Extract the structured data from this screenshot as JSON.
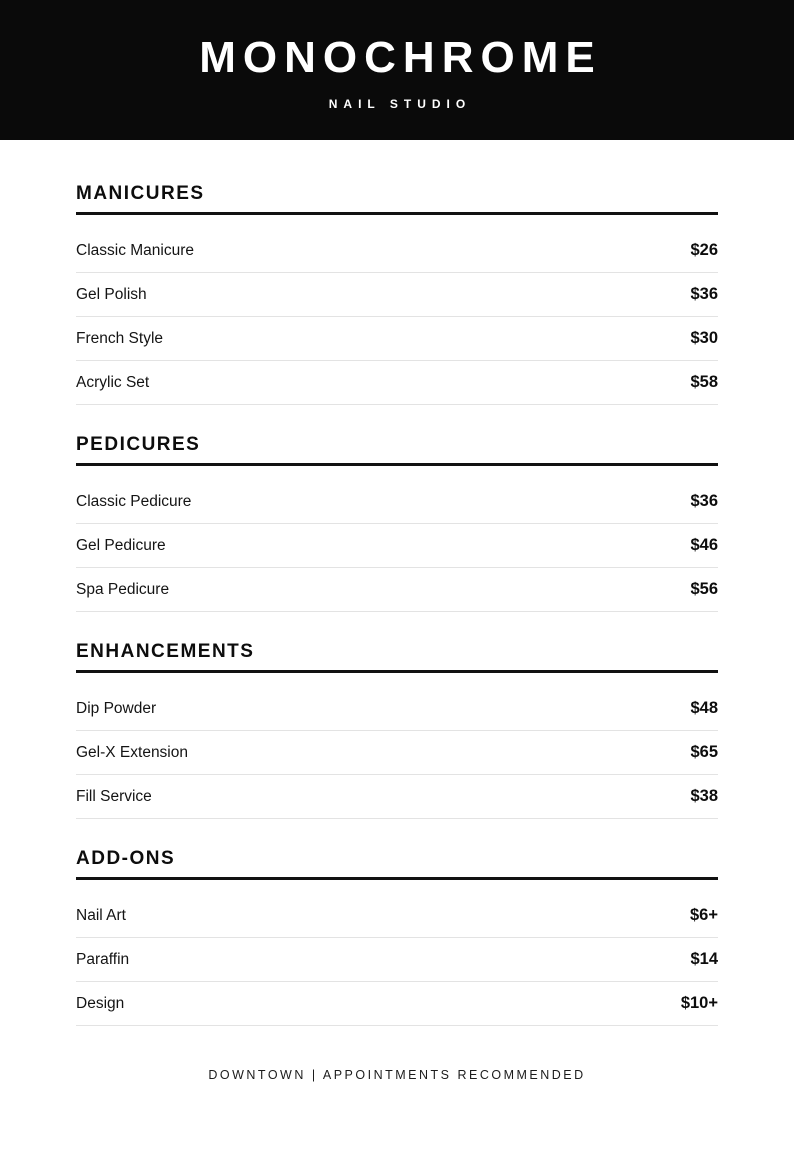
{
  "header": {
    "title": "MONOCHROME",
    "subtitle": "NAIL STUDIO"
  },
  "sections": [
    {
      "title": "MANICURES",
      "items": [
        {
          "name": "Classic Manicure",
          "price": "$26"
        },
        {
          "name": "Gel Polish",
          "price": "$36"
        },
        {
          "name": "French Style",
          "price": "$30"
        },
        {
          "name": "Acrylic Set",
          "price": "$58"
        }
      ]
    },
    {
      "title": "PEDICURES",
      "items": [
        {
          "name": "Classic Pedicure",
          "price": "$36"
        },
        {
          "name": "Gel Pedicure",
          "price": "$46"
        },
        {
          "name": "Spa Pedicure",
          "price": "$56"
        }
      ]
    },
    {
      "title": "ENHANCEMENTS",
      "items": [
        {
          "name": "Dip Powder",
          "price": "$48"
        },
        {
          "name": "Gel-X Extension",
          "price": "$65"
        },
        {
          "name": "Fill Service",
          "price": "$38"
        }
      ]
    },
    {
      "title": "ADD-ONS",
      "items": [
        {
          "name": "Nail Art",
          "price": "$6+"
        },
        {
          "name": "Paraffin",
          "price": "$14"
        },
        {
          "name": "Design",
          "price": "$10+"
        }
      ]
    }
  ],
  "footer": {
    "text": "DOWNTOWN | APPOINTMENTS RECOMMENDED"
  },
  "colors": {
    "header_bg": "#0a0a0a",
    "header_text": "#ffffff",
    "body_text": "#111111",
    "section_rule": "#111111",
    "row_divider": "#e3e3e3"
  }
}
